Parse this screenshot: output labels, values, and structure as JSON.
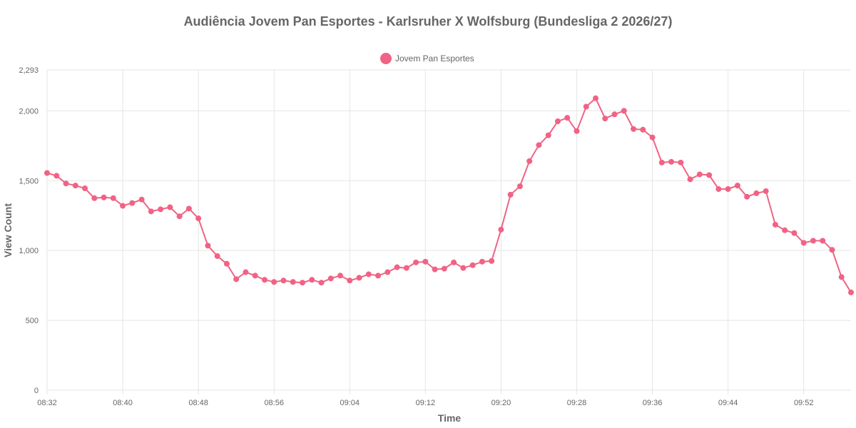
{
  "chart_data": {
    "type": "line",
    "title": "Audiência Jovem Pan Esportes - Karlsruher X Wolfsburg (Bundesliga 2 2026/27)",
    "xlabel": "Time",
    "ylabel": "View Count",
    "ylim": [
      0,
      2293
    ],
    "y_ticks": [
      {
        "value": 0,
        "label": "0"
      },
      {
        "value": 500,
        "label": "500"
      },
      {
        "value": 1000,
        "label": "1,000"
      },
      {
        "value": 1500,
        "label": "1,500"
      },
      {
        "value": 2000,
        "label": "2,000"
      },
      {
        "value": 2293,
        "label": "2,293"
      }
    ],
    "x_ticks": [
      "08:32",
      "08:40",
      "08:48",
      "08:56",
      "09:04",
      "09:12",
      "09:20",
      "09:28",
      "09:36",
      "09:44",
      "09:52"
    ],
    "x": [
      "08:32",
      "08:33",
      "08:34",
      "08:35",
      "08:36",
      "08:37",
      "08:38",
      "08:39",
      "08:40",
      "08:41",
      "08:42",
      "08:43",
      "08:44",
      "08:45",
      "08:46",
      "08:47",
      "08:48",
      "08:49",
      "08:50",
      "08:51",
      "08:52",
      "08:53",
      "08:54",
      "08:55",
      "08:56",
      "08:57",
      "08:58",
      "08:59",
      "09:00",
      "09:01",
      "09:02",
      "09:03",
      "09:04",
      "09:05",
      "09:06",
      "09:07",
      "09:08",
      "09:09",
      "09:10",
      "09:11",
      "09:12",
      "09:13",
      "09:14",
      "09:15",
      "09:16",
      "09:17",
      "09:18",
      "09:19",
      "09:20",
      "09:21",
      "09:22",
      "09:23",
      "09:24",
      "09:25",
      "09:26",
      "09:27",
      "09:28",
      "09:29",
      "09:30",
      "09:31",
      "09:32",
      "09:33",
      "09:34",
      "09:35",
      "09:36",
      "09:37",
      "09:38",
      "09:39",
      "09:40",
      "09:41",
      "09:42",
      "09:43",
      "09:44",
      "09:45",
      "09:46",
      "09:47",
      "09:48",
      "09:49",
      "09:50",
      "09:51",
      "09:52",
      "09:53",
      "09:54",
      "09:55",
      "09:56",
      "09:57"
    ],
    "series": [
      {
        "name": "Jovem Pan Esportes",
        "color": "#f06384",
        "values": [
          1555,
          1535,
          1480,
          1465,
          1445,
          1375,
          1380,
          1375,
          1320,
          1340,
          1365,
          1280,
          1295,
          1310,
          1245,
          1300,
          1230,
          1035,
          960,
          905,
          795,
          845,
          820,
          790,
          775,
          785,
          775,
          770,
          790,
          770,
          800,
          820,
          785,
          805,
          830,
          820,
          845,
          880,
          875,
          915,
          920,
          865,
          870,
          915,
          875,
          895,
          920,
          925,
          1150,
          1400,
          1460,
          1640,
          1755,
          1825,
          1925,
          1950,
          1855,
          2030,
          2090,
          1945,
          1975,
          2000,
          1870,
          1865,
          1810,
          1630,
          1635,
          1630,
          1510,
          1545,
          1540,
          1440,
          1440,
          1465,
          1385,
          1410,
          1425,
          1185,
          1145,
          1125,
          1055,
          1070,
          1070,
          1005,
          810,
          700
        ]
      }
    ],
    "legend": {
      "position": "top",
      "label": "Jovem Pan Esportes"
    },
    "grid": true
  }
}
